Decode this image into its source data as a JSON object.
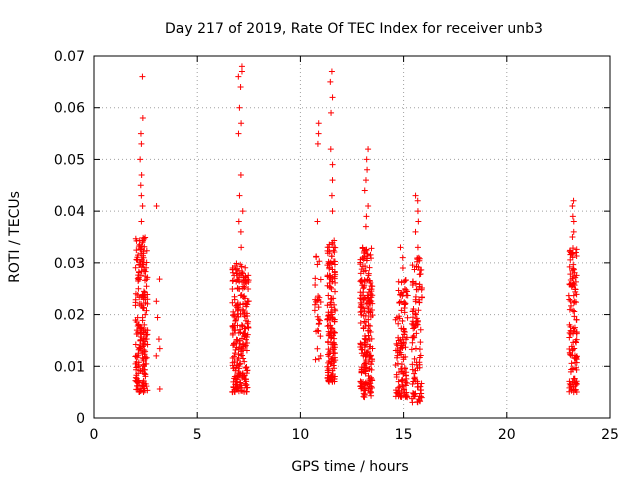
{
  "chart_data": {
    "type": "scatter",
    "title": "Day 217 of 2019, Rate Of TEC Index for receiver unb3",
    "xlabel": "GPS time / hours",
    "ylabel": "ROTI / TECUs",
    "xlim": [
      0,
      25
    ],
    "ylim": [
      0,
      0.07
    ],
    "x_ticks": [
      "0",
      "5",
      "10",
      "15",
      "20",
      "25"
    ],
    "y_ticks": [
      "0",
      "0.01",
      "0.02",
      "0.03",
      "0.04",
      "0.05",
      "0.06",
      "0.07"
    ],
    "grid": true,
    "marker": "+",
    "color": "#ff0000",
    "clusters": [
      {
        "x_range": [
          2.0,
          2.6
        ],
        "n": 210,
        "y_range": [
          0.005,
          0.035
        ],
        "peak": [
          0.066,
          0.058,
          0.055,
          0.053,
          0.05,
          0.047,
          0.045,
          0.043,
          0.041,
          0.038
        ]
      },
      {
        "x_range": [
          2.9,
          3.2
        ],
        "n": 7,
        "y_range": [
          0.004,
          0.028
        ],
        "peak": [
          0.041
        ]
      },
      {
        "x_range": [
          6.7,
          7.5
        ],
        "n": 230,
        "y_range": [
          0.005,
          0.03
        ],
        "peak": [
          0.068,
          0.067,
          0.066,
          0.064,
          0.06,
          0.057,
          0.055,
          0.047,
          0.043,
          0.04,
          0.038,
          0.036,
          0.033
        ]
      },
      {
        "x_range": [
          10.7,
          11.0
        ],
        "n": 30,
        "y_range": [
          0.011,
          0.032
        ],
        "peak": [
          0.057,
          0.055,
          0.053,
          0.038
        ]
      },
      {
        "x_range": [
          11.3,
          11.7
        ],
        "n": 160,
        "y_range": [
          0.007,
          0.035
        ],
        "peak": [
          0.067,
          0.065,
          0.062,
          0.059,
          0.052,
          0.049,
          0.046,
          0.043,
          0.04
        ]
      },
      {
        "x_range": [
          12.9,
          13.5
        ],
        "n": 210,
        "y_range": [
          0.004,
          0.033
        ],
        "peak": [
          0.052,
          0.05,
          0.048,
          0.046,
          0.044,
          0.041,
          0.039,
          0.037
        ]
      },
      {
        "x_range": [
          14.6,
          15.2
        ],
        "n": 120,
        "y_range": [
          0.004,
          0.027
        ],
        "peak": [
          0.033,
          0.031,
          0.029
        ]
      },
      {
        "x_range": [
          15.4,
          15.9
        ],
        "n": 110,
        "y_range": [
          0.003,
          0.031
        ],
        "peak": [
          0.043,
          0.042,
          0.04,
          0.038,
          0.036,
          0.033
        ]
      },
      {
        "x_range": [
          23.0,
          23.4
        ],
        "n": 120,
        "y_range": [
          0.005,
          0.033
        ],
        "peak": [
          0.042,
          0.041,
          0.039,
          0.038,
          0.036,
          0.035
        ]
      }
    ]
  }
}
